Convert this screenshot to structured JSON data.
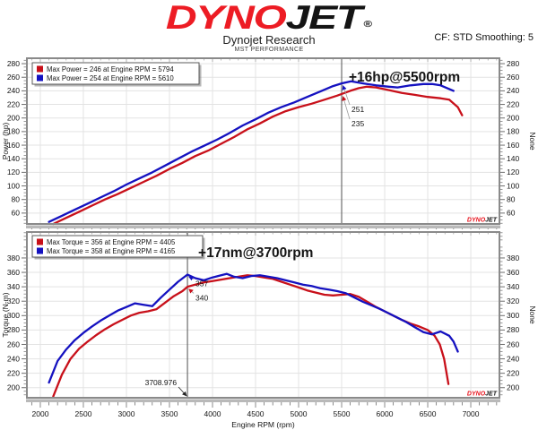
{
  "header": {
    "logo_red": "DYNO",
    "logo_black": "JET",
    "registered": "®",
    "company": "Dynojet Research",
    "shop": "MST PERFORMANCE",
    "correction": "CF: STD Smoothing: 5"
  },
  "watermark": {
    "red": "DYNO",
    "black": "JET"
  },
  "colors": {
    "red_series": "#c8101a",
    "blue_series": "#1411c0",
    "grid": "#e3e3e3",
    "frame": "#8a8a8a",
    "frame_band": "#b9b9b9",
    "cursor": "#5f5f5f",
    "value_blue": "#3f3f63",
    "value_red": "#cc3a3a",
    "tick": "#6e6e6e"
  },
  "chart_data": [
    {
      "id": "power",
      "type": "line",
      "title": "",
      "xlabel": "",
      "ylabel_left": "Power (hp)",
      "ylabel_right": "None",
      "ylim": [
        44,
        288
      ],
      "yticks": [
        60,
        80,
        100,
        120,
        140,
        160,
        180,
        200,
        220,
        240,
        260,
        280
      ],
      "y_minor_step": 5,
      "xlim": [
        1844,
        7333
      ],
      "xticks": [
        2000,
        2500,
        3000,
        3500,
        4000,
        4500,
        5000,
        5500,
        6000,
        6500,
        7000
      ],
      "x_minor_step": 100,
      "grid": true,
      "legend_position": "top-left",
      "legend": [
        {
          "color": "red",
          "label": "Max Power = 246 at Engine RPM = 5794"
        },
        {
          "color": "blue",
          "label": "Max Power = 254 at Engine RPM = 5610"
        }
      ],
      "annotation": "+16hp@5500rpm",
      "cursor": {
        "x": 5500,
        "values": [
          {
            "series": "after",
            "color": "blue",
            "text": "251",
            "value": 251
          },
          {
            "series": "before",
            "color": "red",
            "text": "235",
            "value": 235
          }
        ]
      },
      "series": [
        {
          "name": "before",
          "color": "red",
          "points": [
            [
              2150,
              44
            ],
            [
              2300,
              53
            ],
            [
              2450,
              62
            ],
            [
              2600,
              71
            ],
            [
              2750,
              80
            ],
            [
              2900,
              88
            ],
            [
              3050,
              97
            ],
            [
              3200,
              106
            ],
            [
              3350,
              115
            ],
            [
              3500,
              125
            ],
            [
              3650,
              134
            ],
            [
              3800,
              144
            ],
            [
              3950,
              152
            ],
            [
              4100,
              162
            ],
            [
              4250,
              172
            ],
            [
              4400,
              183
            ],
            [
              4550,
              192
            ],
            [
              4700,
              202
            ],
            [
              4850,
              210
            ],
            [
              5000,
              216
            ],
            [
              5150,
              221
            ],
            [
              5300,
              227
            ],
            [
              5450,
              233
            ],
            [
              5600,
              240
            ],
            [
              5700,
              244
            ],
            [
              5794,
              246
            ],
            [
              5900,
              245
            ],
            [
              6050,
              241
            ],
            [
              6200,
              237
            ],
            [
              6350,
              234
            ],
            [
              6500,
              231
            ],
            [
              6650,
              229
            ],
            [
              6750,
              227
            ],
            [
              6850,
              216
            ],
            [
              6900,
              204
            ]
          ]
        },
        {
          "name": "after",
          "color": "blue",
          "points": [
            [
              2100,
              47
            ],
            [
              2250,
              56
            ],
            [
              2400,
              65
            ],
            [
              2550,
              74
            ],
            [
              2700,
              83
            ],
            [
              2850,
              92
            ],
            [
              3000,
              102
            ],
            [
              3150,
              111
            ],
            [
              3300,
              120
            ],
            [
              3450,
              130
            ],
            [
              3600,
              140
            ],
            [
              3750,
              150
            ],
            [
              3900,
              159
            ],
            [
              4050,
              168
            ],
            [
              4200,
              178
            ],
            [
              4350,
              189
            ],
            [
              4500,
              198
            ],
            [
              4650,
              208
            ],
            [
              4800,
              216
            ],
            [
              4950,
              223
            ],
            [
              5100,
              231
            ],
            [
              5250,
              239
            ],
            [
              5400,
              247
            ],
            [
              5500,
              251
            ],
            [
              5610,
              254
            ],
            [
              5750,
              251
            ],
            [
              5900,
              248
            ],
            [
              6050,
              246
            ],
            [
              6150,
              245
            ],
            [
              6300,
              248
            ],
            [
              6450,
              250
            ],
            [
              6550,
              250
            ],
            [
              6650,
              248
            ],
            [
              6800,
              240
            ]
          ]
        }
      ]
    },
    {
      "id": "torque",
      "type": "line",
      "title": "",
      "xlabel": "Engine RPM (rpm)",
      "ylabel_left": "Torque (N-m)",
      "ylabel_right": "None",
      "ylim": [
        186,
        416
      ],
      "yticks": [
        200,
        220,
        240,
        260,
        280,
        300,
        320,
        340,
        360,
        380
      ],
      "y_minor_step": 5,
      "xlim": [
        1844,
        7333
      ],
      "xticks": [
        2000,
        2500,
        3000,
        3500,
        4000,
        4500,
        5000,
        5500,
        6000,
        6500,
        7000
      ],
      "x_minor_step": 100,
      "grid": true,
      "legend_position": "top-left",
      "legend": [
        {
          "color": "red",
          "label": "Max Torque = 356 at Engine RPM = 4405"
        },
        {
          "color": "blue",
          "label": "Max Torque = 358 at Engine RPM = 4165"
        }
      ],
      "annotation": "+17nm@3700rpm",
      "cursor": {
        "x": 3709,
        "x_label": "3708.976",
        "values": [
          {
            "series": "after",
            "color": "blue",
            "text": "357",
            "value": 357
          },
          {
            "series": "before",
            "color": "red",
            "text": "340",
            "value": 340
          }
        ]
      },
      "series": [
        {
          "name": "before",
          "color": "red",
          "points": [
            [
              2150,
              188
            ],
            [
              2250,
              218
            ],
            [
              2350,
              240
            ],
            [
              2450,
              254
            ],
            [
              2550,
              264
            ],
            [
              2650,
              273
            ],
            [
              2750,
              281
            ],
            [
              2850,
              288
            ],
            [
              2950,
              294
            ],
            [
              3050,
              300
            ],
            [
              3150,
              304
            ],
            [
              3250,
              306
            ],
            [
              3350,
              309
            ],
            [
              3450,
              318
            ],
            [
              3550,
              327
            ],
            [
              3650,
              334
            ],
            [
              3709,
              340
            ],
            [
              3800,
              343
            ],
            [
              3900,
              346
            ],
            [
              4000,
              348
            ],
            [
              4100,
              350
            ],
            [
              4200,
              352
            ],
            [
              4300,
              354
            ],
            [
              4405,
              356
            ],
            [
              4500,
              355
            ],
            [
              4600,
              353
            ],
            [
              4700,
              351
            ],
            [
              4800,
              347
            ],
            [
              4900,
              343
            ],
            [
              5000,
              339
            ],
            [
              5100,
              335
            ],
            [
              5200,
              332
            ],
            [
              5300,
              329
            ],
            [
              5400,
              328
            ],
            [
              5500,
              329
            ],
            [
              5600,
              330
            ],
            [
              5700,
              326
            ],
            [
              5800,
              319
            ],
            [
              5900,
              312
            ],
            [
              6000,
              306
            ],
            [
              6100,
              300
            ],
            [
              6200,
              294
            ],
            [
              6300,
              289
            ],
            [
              6400,
              285
            ],
            [
              6500,
              280
            ],
            [
              6580,
              272
            ],
            [
              6640,
              260
            ],
            [
              6690,
              240
            ],
            [
              6740,
              205
            ]
          ]
        },
        {
          "name": "after",
          "color": "blue",
          "points": [
            [
              2100,
              207
            ],
            [
              2200,
              237
            ],
            [
              2300,
              253
            ],
            [
              2400,
              266
            ],
            [
              2500,
              276
            ],
            [
              2600,
              285
            ],
            [
              2700,
              293
            ],
            [
              2800,
              300
            ],
            [
              2900,
              307
            ],
            [
              3000,
              312
            ],
            [
              3100,
              317
            ],
            [
              3200,
              315
            ],
            [
              3300,
              313
            ],
            [
              3400,
              325
            ],
            [
              3500,
              336
            ],
            [
              3600,
              347
            ],
            [
              3709,
              357
            ],
            [
              3800,
              352
            ],
            [
              3900,
              349
            ],
            [
              4000,
              353
            ],
            [
              4100,
              356
            ],
            [
              4165,
              358
            ],
            [
              4250,
              354
            ],
            [
              4350,
              352
            ],
            [
              4450,
              355
            ],
            [
              4550,
              356
            ],
            [
              4650,
              354
            ],
            [
              4750,
              352
            ],
            [
              4850,
              349
            ],
            [
              4950,
              346
            ],
            [
              5050,
              343
            ],
            [
              5150,
              341
            ],
            [
              5250,
              338
            ],
            [
              5350,
              336
            ],
            [
              5450,
              334
            ],
            [
              5550,
              331
            ],
            [
              5650,
              325
            ],
            [
              5750,
              319
            ],
            [
              5850,
              314
            ],
            [
              5950,
              309
            ],
            [
              6050,
              303
            ],
            [
              6150,
              297
            ],
            [
              6250,
              291
            ],
            [
              6350,
              284
            ],
            [
              6450,
              277
            ],
            [
              6550,
              274
            ],
            [
              6650,
              278
            ],
            [
              6750,
              272
            ],
            [
              6800,
              264
            ],
            [
              6850,
              250
            ]
          ]
        }
      ]
    }
  ]
}
